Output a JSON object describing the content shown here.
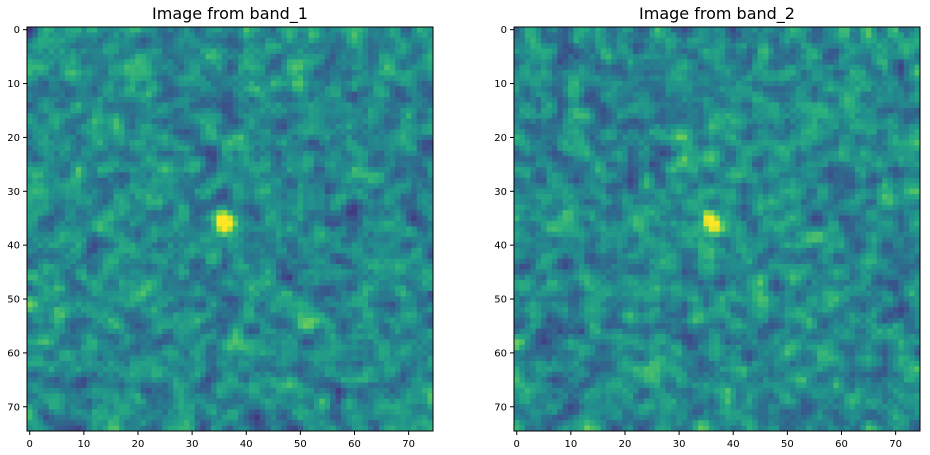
{
  "chart_data": [
    {
      "type": "heatmap",
      "title": "Image from band_1",
      "xlabel": "",
      "ylabel": "",
      "grid_size": [
        75,
        75
      ],
      "xlim": [
        -0.5,
        74.5
      ],
      "ylim": [
        74.5,
        -0.5
      ],
      "xticks": [
        0,
        10,
        20,
        30,
        40,
        50,
        60,
        70
      ],
      "yticks": [
        0,
        10,
        20,
        30,
        40,
        50,
        60,
        70
      ],
      "colormap": "viridis",
      "bright_spot": {
        "x": 36,
        "y": 36
      },
      "grid": false
    },
    {
      "type": "heatmap",
      "title": "Image from band_2",
      "xlabel": "",
      "ylabel": "",
      "grid_size": [
        75,
        75
      ],
      "xlim": [
        -0.5,
        74.5
      ],
      "ylim": [
        74.5,
        -0.5
      ],
      "xticks": [
        0,
        10,
        20,
        30,
        40,
        50,
        60,
        70
      ],
      "yticks": [
        0,
        10,
        20,
        30,
        40,
        50,
        60,
        70
      ],
      "colormap": "viridis",
      "bright_spot": {
        "x": 36,
        "y": 36
      },
      "grid": false
    }
  ]
}
